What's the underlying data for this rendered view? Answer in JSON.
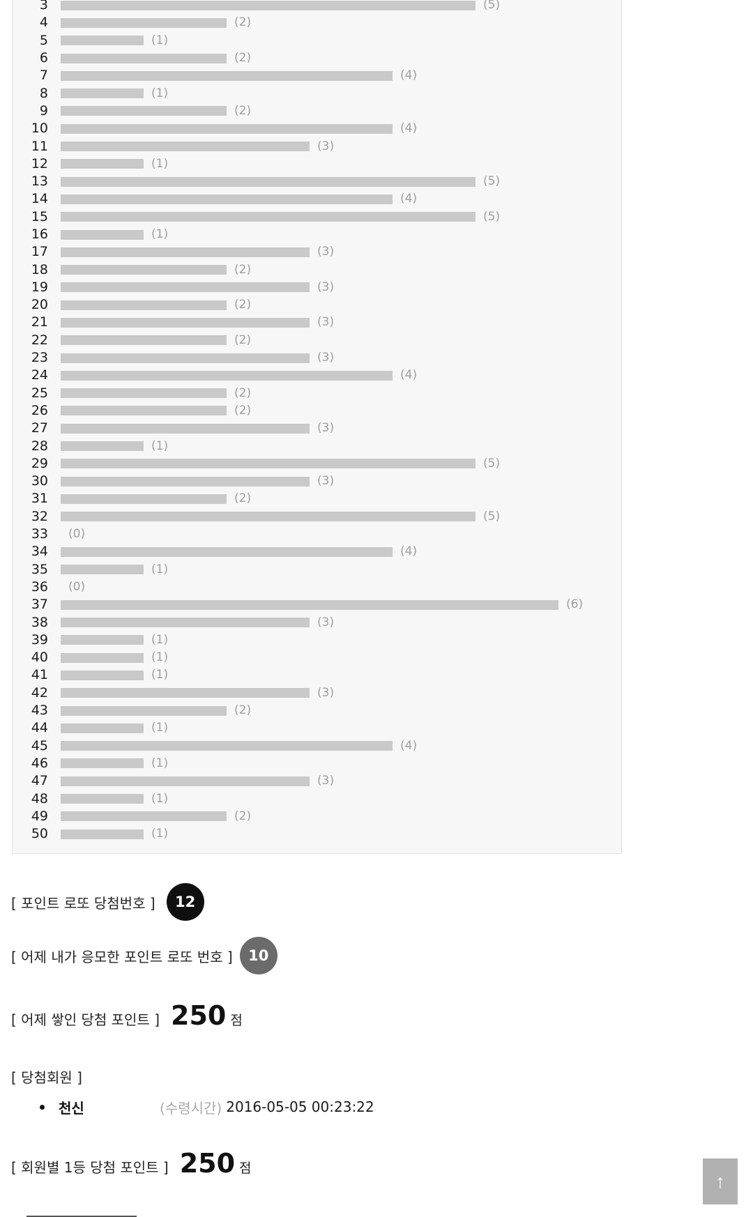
{
  "chart_data": {
    "type": "bar",
    "orientation": "horizontal",
    "title": "",
    "xlabel": "",
    "ylabel": "",
    "xlim": [
      0,
      7
    ],
    "grid": false,
    "legend": null,
    "value_label_format": "(n)",
    "categories": [
      3,
      4,
      5,
      6,
      7,
      8,
      9,
      10,
      11,
      12,
      13,
      14,
      15,
      16,
      17,
      18,
      19,
      20,
      21,
      22,
      23,
      24,
      25,
      26,
      27,
      28,
      29,
      30,
      31,
      32,
      33,
      34,
      35,
      36,
      37,
      38,
      39,
      40,
      41,
      42,
      43,
      44,
      45,
      46,
      47,
      48,
      49,
      50
    ],
    "values": [
      5,
      2,
      1,
      2,
      4,
      1,
      2,
      4,
      3,
      1,
      5,
      4,
      5,
      1,
      3,
      2,
      3,
      2,
      3,
      2,
      3,
      4,
      2,
      2,
      3,
      1,
      5,
      3,
      2,
      5,
      0,
      4,
      1,
      0,
      6,
      3,
      1,
      1,
      1,
      3,
      2,
      1,
      4,
      1,
      3,
      1,
      2,
      1
    ]
  },
  "sections": {
    "winning_number": {
      "label": "[ 포인트 로또 당첨번호 ]",
      "value": "12"
    },
    "my_number": {
      "label": "[ 어제 내가 응모한 포인트 로또 번호 ]",
      "value": "10"
    },
    "accumulated_points": {
      "label": "[ 어제 쌓인 당첨 포인트 ]",
      "value": "250",
      "unit": "점"
    },
    "winners": {
      "label": "[ 당첨회원 ]",
      "items": [
        {
          "name": "천신",
          "time_label": "(수령시간)",
          "time": "2016-05-05 00:23:22"
        }
      ]
    },
    "per_member_points": {
      "label": "[ 회원별 1등 당첨 포인트 ]",
      "value": "250",
      "unit": "점"
    }
  },
  "scroll_top": {
    "icon": "↑"
  },
  "colors": {
    "bar": "#c9c9c9",
    "chart_bg": "#f7f7f7",
    "chart_border": "#e2e2e2",
    "count_label": "#9f9f9f",
    "badge_black": "#0f0f0f",
    "badge_gray": "#6b6b6b",
    "scroll_button": "#b1b1b1"
  }
}
